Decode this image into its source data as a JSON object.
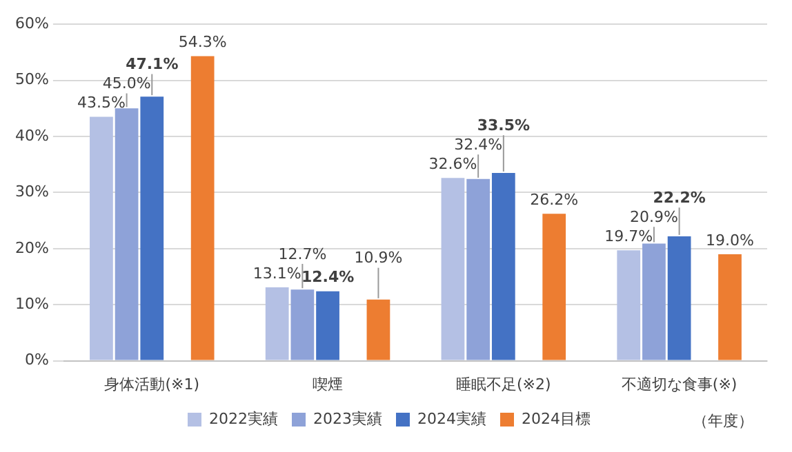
{
  "chart_data": {
    "type": "bar",
    "categories": [
      "身体活動(※1)",
      "喫煙",
      "睡眠不足(※2)",
      "不適切な食事(※)"
    ],
    "series": [
      {
        "name": "2022実績",
        "color": "#b4c0e4",
        "values": [
          43.5,
          13.1,
          32.6,
          19.7
        ],
        "value_labels": [
          "43.5%",
          "13.1%",
          "32.6%",
          "19.7%"
        ]
      },
      {
        "name": "2023実績",
        "color": "#8ea2d8",
        "values": [
          45.0,
          12.7,
          32.4,
          20.9
        ],
        "value_labels": [
          "45.0%",
          "12.7%",
          "32.4%",
          "20.9%"
        ]
      },
      {
        "name": "2024実績",
        "color": "#4472c4",
        "values": [
          47.1,
          12.4,
          33.5,
          22.2
        ],
        "value_labels": [
          "47.1%",
          "12.4%",
          "33.5%",
          "22.2%"
        ]
      },
      {
        "name": "2024目標",
        "color": "#ed7d31",
        "values": [
          54.3,
          10.9,
          26.2,
          19.0
        ],
        "value_labels": [
          "54.3%",
          "10.9%",
          "26.2%",
          "19.0%"
        ]
      }
    ],
    "ylim": [
      0,
      60
    ],
    "yticks": [
      {
        "value": 0,
        "label": "0%"
      },
      {
        "value": 10,
        "label": "10%"
      },
      {
        "value": 20,
        "label": "20%"
      },
      {
        "value": 30,
        "label": "30%"
      },
      {
        "value": 40,
        "label": "40%"
      },
      {
        "value": 50,
        "label": "50%"
      },
      {
        "value": 60,
        "label": "60%"
      }
    ],
    "grid": "y",
    "legend": "bottom",
    "annotations": [
      "（年度）"
    ]
  }
}
